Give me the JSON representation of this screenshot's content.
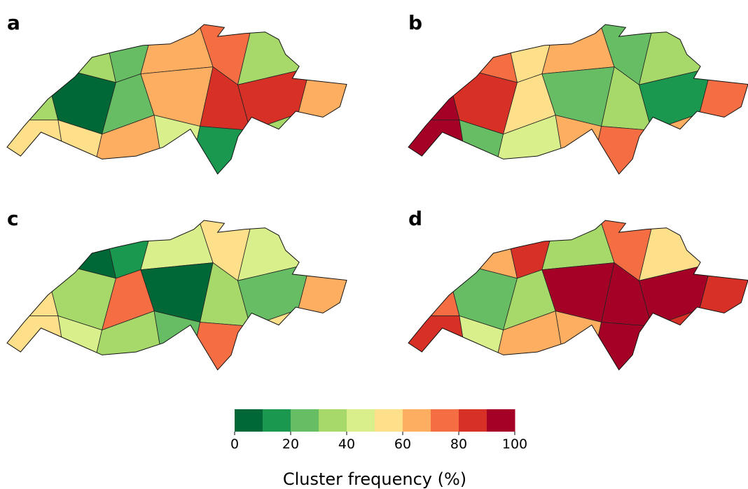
{
  "panels": [
    {
      "label": "a",
      "values": [
        [
          40,
          30,
          25,
          65,
          75,
          35,
          50
        ],
        [
          35,
          5,
          25,
          60,
          80,
          85,
          60
        ],
        [
          55,
          50,
          60,
          45,
          10,
          30,
          90
        ]
      ]
    },
    {
      "label": "b",
      "values": [
        [
          65,
          70,
          55,
          60,
          25,
          30,
          55
        ],
        [
          90,
          85,
          55,
          25,
          30,
          10,
          70
        ],
        [
          95,
          20,
          45,
          60,
          70,
          65,
          60
        ]
      ]
    },
    {
      "label": "c",
      "values": [
        [
          20,
          5,
          15,
          45,
          50,
          40,
          35
        ],
        [
          55,
          30,
          70,
          5,
          35,
          25,
          60
        ],
        [
          55,
          40,
          35,
          25,
          75,
          55,
          60
        ]
      ]
    },
    {
      "label": "d",
      "values": [
        [
          95,
          65,
          85,
          35,
          75,
          55,
          70
        ],
        [
          75,
          20,
          30,
          95,
          100,
          95,
          85
        ],
        [
          80,
          45,
          60,
          60,
          100,
          85,
          70
        ]
      ]
    }
  ],
  "colorbar": {
    "label": "Cluster frequency (%)",
    "lim": [
      0,
      100
    ],
    "ticks": [
      0,
      20,
      40,
      60,
      80,
      100
    ],
    "colors": [
      "#006837",
      "#1a9850",
      "#66bd63",
      "#a6d96a",
      "#d9ef8b",
      "#fee08b",
      "#fdae61",
      "#f46d43",
      "#d73027",
      "#a50026"
    ]
  }
}
